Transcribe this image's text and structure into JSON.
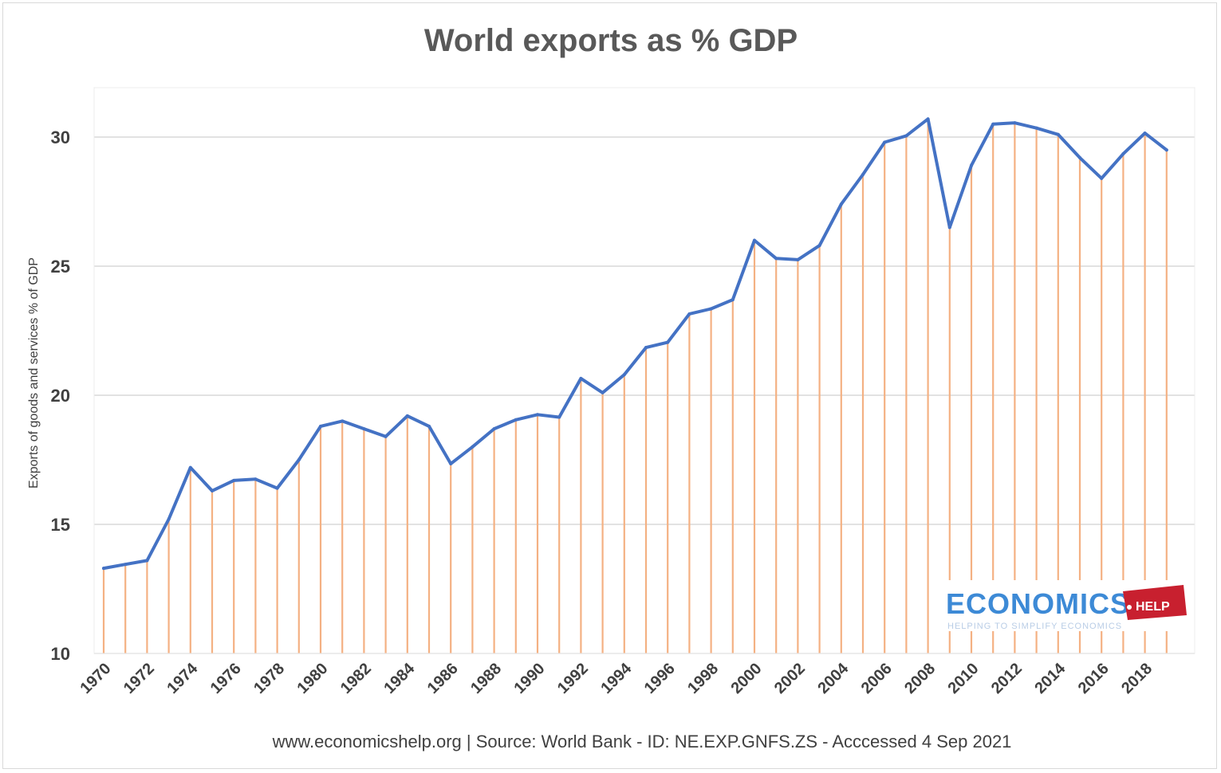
{
  "chart_data": {
    "type": "line",
    "title": "World exports as % GDP",
    "ylabel": "Exports of goods and services % of GDP",
    "xlabel": "",
    "ylim": [
      10,
      32
    ],
    "yticks": [
      10,
      15,
      20,
      25,
      30
    ],
    "grid": true,
    "x": [
      1970,
      1971,
      1972,
      1973,
      1974,
      1975,
      1976,
      1977,
      1978,
      1979,
      1980,
      1981,
      1982,
      1983,
      1984,
      1985,
      1986,
      1987,
      1988,
      1989,
      1990,
      1991,
      1992,
      1993,
      1994,
      1995,
      1996,
      1997,
      1998,
      1999,
      2000,
      2001,
      2002,
      2003,
      2004,
      2005,
      2006,
      2007,
      2008,
      2009,
      2010,
      2011,
      2012,
      2013,
      2014,
      2015,
      2016,
      2017,
      2018,
      2019
    ],
    "xtick_labels": [
      "1970",
      "1972",
      "1974",
      "1976",
      "1978",
      "1980",
      "1982",
      "1984",
      "1986",
      "1988",
      "1990",
      "1992",
      "1994",
      "1996",
      "1998",
      "2000",
      "2002",
      "2004",
      "2006",
      "2008",
      "2010",
      "2012",
      "2014",
      "2016",
      "2018"
    ],
    "series": [
      {
        "color": "#4472c4",
        "drop_line_color": "#f4b183",
        "values": [
          13.3,
          13.45,
          13.6,
          15.2,
          17.2,
          16.3,
          16.7,
          16.75,
          16.4,
          17.5,
          18.8,
          19.0,
          18.7,
          18.4,
          19.2,
          18.8,
          17.35,
          18.0,
          18.7,
          19.05,
          19.25,
          19.15,
          20.65,
          20.1,
          20.8,
          21.85,
          22.05,
          23.15,
          23.35,
          23.7,
          26.0,
          25.3,
          25.25,
          25.8,
          27.4,
          28.55,
          29.8,
          30.05,
          30.7,
          26.5,
          28.9,
          30.5,
          30.55,
          30.35,
          30.1,
          29.2,
          28.4,
          29.35,
          30.15,
          29.5
        ]
      }
    ],
    "source_text": "www.economicshelp.org  | Source: World Bank - ID: NE.EXP.GNFS.ZS - Acccessed 4 Sep 2021"
  },
  "logo": {
    "main_text": "ECONOMICS",
    "badge_text": "HELP",
    "tagline": "HELPING TO SIMPLIFY ECONOMICS",
    "main_color": "#3d8ad6",
    "badge_color": "#c8202f"
  }
}
